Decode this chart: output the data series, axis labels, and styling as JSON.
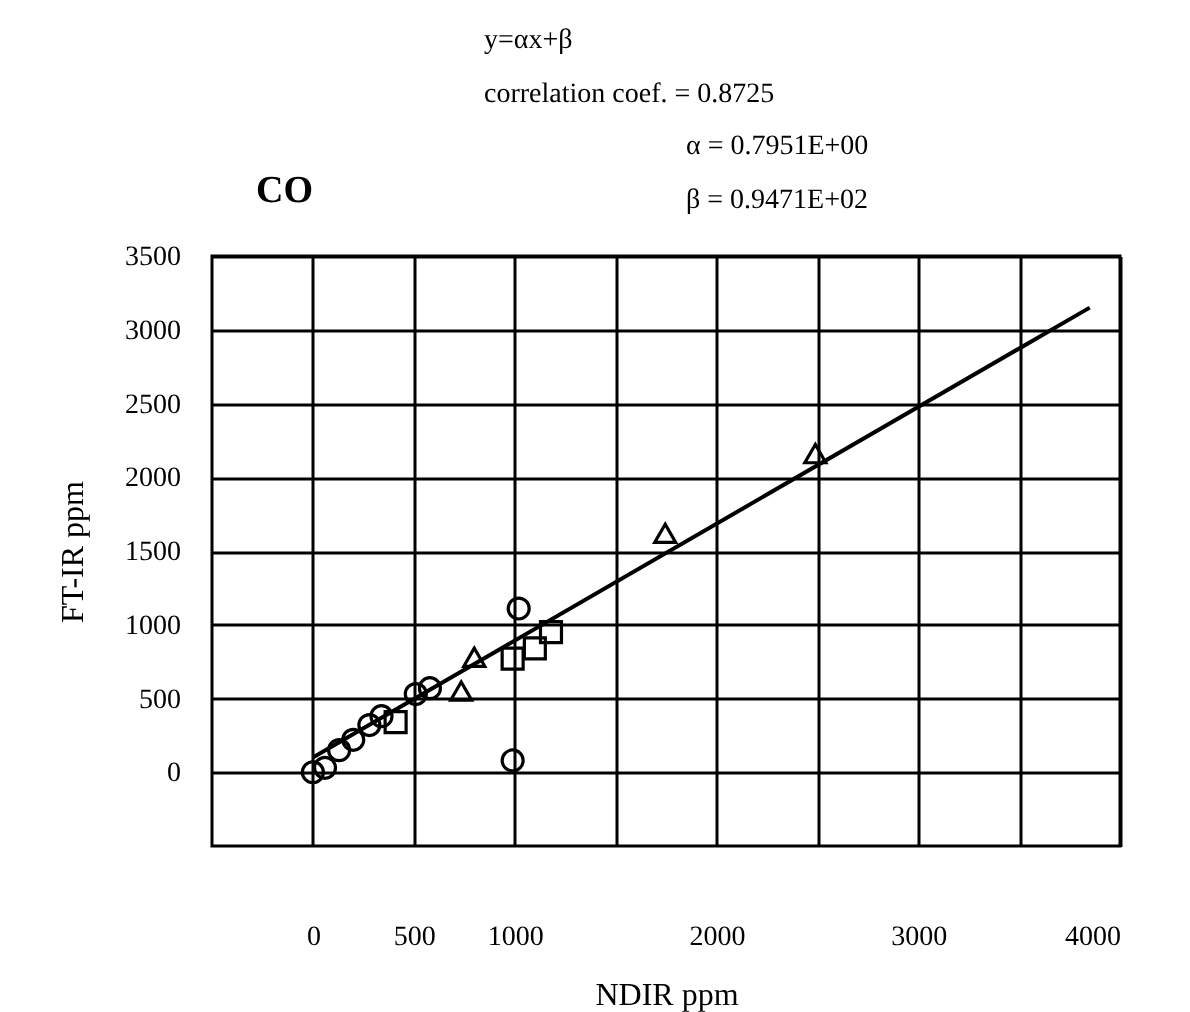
{
  "chart_data": {
    "type": "scatter",
    "title": "CO",
    "xlabel": "NDIR   ppm",
    "ylabel": "FT-IR   ppm",
    "annotations": [
      "y=αx+β",
      "correlation coef.  = 0.8725",
      "α  = 0.7951E+00",
      "β  = 0.9471E+02"
    ],
    "xlim": [
      -500,
      4000
    ],
    "ylim": [
      -500,
      3500
    ],
    "xticks": [
      0,
      500,
      1000,
      {
        "value": 1500,
        "label": null
      },
      2000,
      {
        "value": 2500,
        "label": null
      },
      3000,
      {
        "value": 3500,
        "label": null
      },
      4000
    ],
    "yticks": [
      0,
      500,
      1000,
      1500,
      2000,
      2500,
      3000,
      3500
    ],
    "grid": true,
    "series": [
      {
        "marker": "circle",
        "color": "#000000",
        "x": [
          0,
          60,
          130,
          200,
          280,
          340,
          510,
          580,
          1020,
          990
        ],
        "values": [
          0,
          30,
          150,
          220,
          320,
          380,
          530,
          570,
          1110,
          80
        ]
      },
      {
        "marker": "square",
        "color": "#000000",
        "x": [
          410,
          990,
          1100,
          1180
        ],
        "values": [
          340,
          770,
          840,
          950
        ]
      },
      {
        "marker": "triangle",
        "color": "#000000",
        "x": [
          735,
          800,
          1746,
          2490
        ],
        "values": [
          550,
          780,
          1620,
          2160
        ]
      },
      {
        "type": "line",
        "marker": "none",
        "line_style": "solid",
        "color": "#000000",
        "x": [
          0,
          3850
        ],
        "values": [
          100,
          3150
        ]
      }
    ]
  }
}
